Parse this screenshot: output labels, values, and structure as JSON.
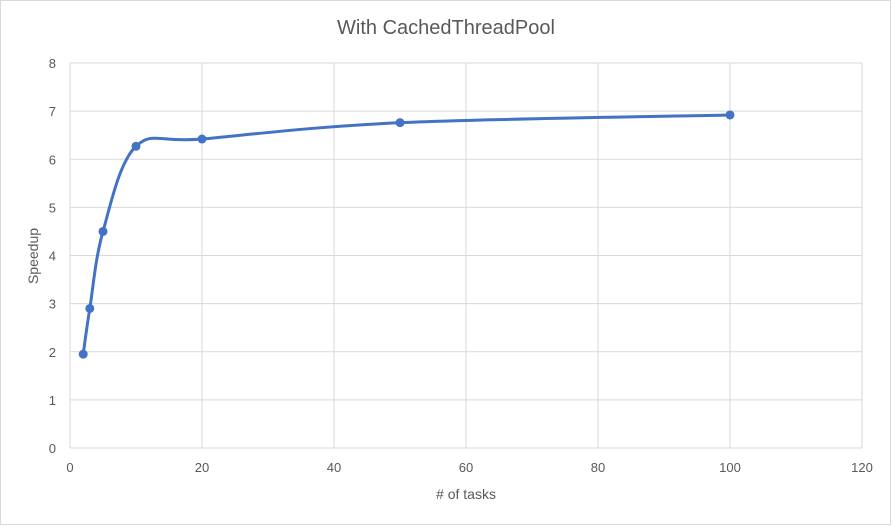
{
  "chart_data": {
    "type": "scatter",
    "title": "With CachedThreadPool",
    "xlabel": "# of tasks",
    "ylabel": "Speedup",
    "xlim": [
      0,
      120
    ],
    "ylim": [
      0,
      8
    ],
    "xticks": [
      0,
      20,
      40,
      60,
      80,
      100,
      120
    ],
    "yticks": [
      0,
      1,
      2,
      3,
      4,
      5,
      6,
      7,
      8
    ],
    "grid": true,
    "legend": "none",
    "smooth_line": true,
    "series": [
      {
        "color": "#4472c4",
        "x": [
          2,
          3,
          5,
          10,
          20,
          50,
          100
        ],
        "y": [
          1.95,
          2.9,
          4.5,
          6.27,
          6.42,
          6.76,
          6.92
        ]
      }
    ]
  }
}
